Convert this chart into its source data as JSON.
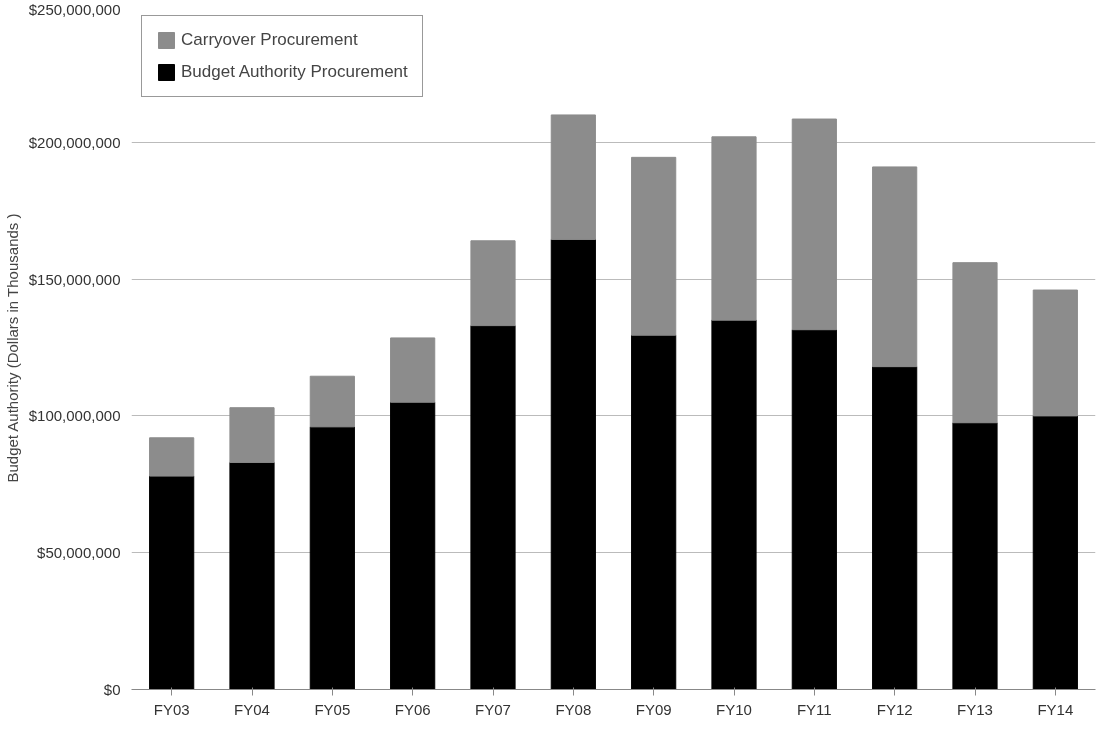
{
  "chart_data": {
    "type": "bar",
    "stacked": true,
    "ylabel": "Budget Authority (Dollars in Thousands )",
    "categories": [
      "FY03",
      "FY04",
      "FY05",
      "FY06",
      "FY07",
      "FY08",
      "FY09",
      "FY10",
      "FY11",
      "FY12",
      "FY13",
      "FY14"
    ],
    "series": [
      {
        "name": "Budget Authority Procurement",
        "color": "#000000",
        "values": [
          78000000,
          83000000,
          96000000,
          105000000,
          133000000,
          164500000,
          129500000,
          135000000,
          131500000,
          118000000,
          97500000,
          100000000
        ]
      },
      {
        "name": "Carryover Procurement",
        "color": "#8c8c8c",
        "values": [
          14000000,
          20000000,
          18500000,
          23500000,
          31000000,
          45500000,
          65000000,
          67000000,
          77000000,
          73000000,
          58500000,
          46000000
        ]
      }
    ],
    "ylim": [
      0,
      250000000
    ],
    "yticks": [
      {
        "value": 0,
        "label": "$0"
      },
      {
        "value": 50000000,
        "label": "$50,000,000"
      },
      {
        "value": 100000000,
        "label": "$100,000,000"
      },
      {
        "value": 150000000,
        "label": "$150,000,000"
      },
      {
        "value": 200000000,
        "label": "$200,000,000"
      },
      {
        "value": 250000000,
        "label": "$250,000,000"
      }
    ],
    "grid": "y",
    "legend": "top left"
  }
}
